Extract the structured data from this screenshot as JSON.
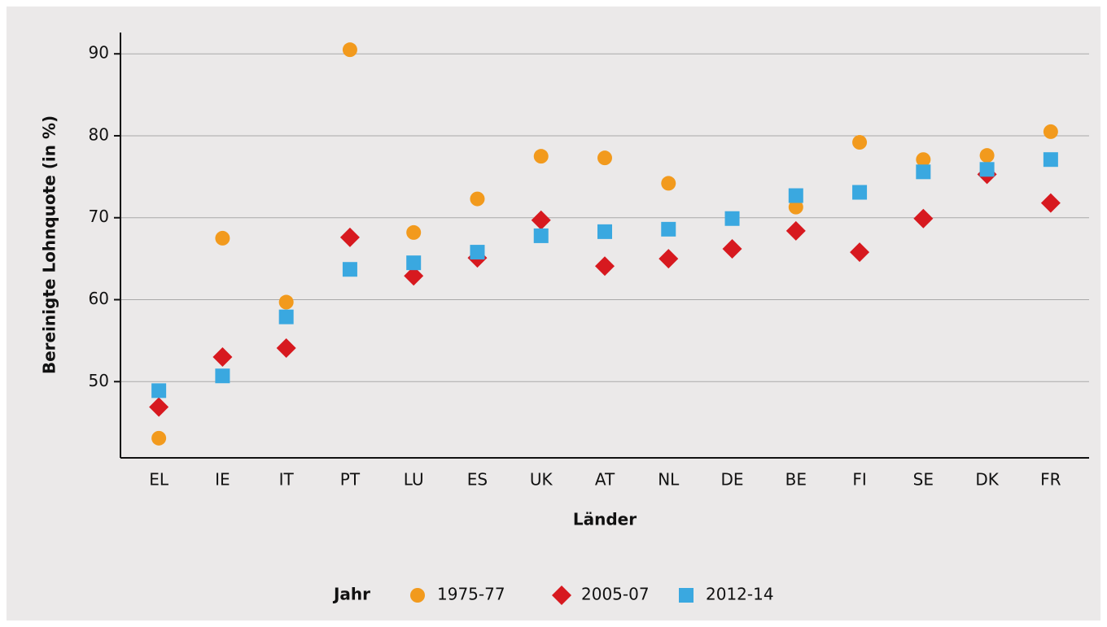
{
  "chart_data": {
    "type": "dot",
    "y_label": "Bereinigte Lohnquote (in %)",
    "x_label": "Länder",
    "legend_title": "Jahr",
    "categories": [
      "EL",
      "IE",
      "IT",
      "PT",
      "LU",
      "ES",
      "UK",
      "AT",
      "NL",
      "DE",
      "BE",
      "FI",
      "SE",
      "DK",
      "FR"
    ],
    "series": [
      {
        "name": "1975-77",
        "color": "#f29a1d",
        "marker": "circle",
        "values": [
          43.1,
          67.5,
          59.7,
          90.5,
          68.2,
          72.3,
          77.5,
          77.3,
          74.2,
          null,
          71.3,
          79.2,
          77.1,
          77.6,
          80.5
        ]
      },
      {
        "name": "2005-07",
        "color": "#d7191f",
        "marker": "diamond",
        "values": [
          46.9,
          53.0,
          54.1,
          67.6,
          62.9,
          65.1,
          69.7,
          64.1,
          65.0,
          66.2,
          68.4,
          65.8,
          69.9,
          75.3,
          71.8
        ]
      },
      {
        "name": "2012-14",
        "color": "#3aa8e0",
        "marker": "square",
        "values": [
          48.9,
          50.7,
          57.9,
          63.7,
          64.5,
          65.8,
          67.8,
          68.3,
          68.6,
          69.9,
          72.7,
          73.1,
          75.6,
          75.9,
          77.1
        ]
      }
    ],
    "ylim": [
      40.7,
      92.6
    ],
    "yticks": [
      50,
      60,
      70,
      80,
      90
    ],
    "grid": true
  }
}
